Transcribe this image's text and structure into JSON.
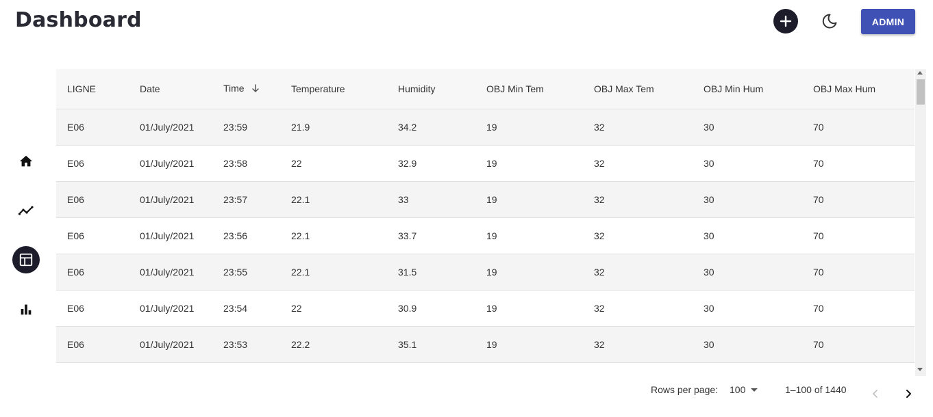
{
  "header": {
    "title": "Dashboard",
    "add_icon": "plus-icon",
    "theme_icon": "moon-icon",
    "admin_label": "ADMIN",
    "accent_color": "#3f51b5"
  },
  "sidebar": {
    "items": [
      {
        "name": "home",
        "icon": "home-icon",
        "active": false
      },
      {
        "name": "trend",
        "icon": "line-chart-icon",
        "active": false
      },
      {
        "name": "table",
        "icon": "table-icon",
        "active": true
      },
      {
        "name": "bar-chart",
        "icon": "bar-chart-icon",
        "active": false
      }
    ]
  },
  "table": {
    "columns": [
      "LIGNE",
      "Date",
      "Time",
      "Temperature",
      "Humidity",
      "OBJ Min Tem",
      "OBJ Max Tem",
      "OBJ Min Hum",
      "OBJ Max Hum"
    ],
    "sorted_column": "Time",
    "sort_direction": "desc",
    "rows": [
      [
        "E06",
        "01/July/2021",
        "23:59",
        "21.9",
        "34.2",
        "19",
        "32",
        "30",
        "70"
      ],
      [
        "E06",
        "01/July/2021",
        "23:58",
        "22",
        "32.9",
        "19",
        "32",
        "30",
        "70"
      ],
      [
        "E06",
        "01/July/2021",
        "23:57",
        "22.1",
        "33",
        "19",
        "32",
        "30",
        "70"
      ],
      [
        "E06",
        "01/July/2021",
        "23:56",
        "22.1",
        "33.7",
        "19",
        "32",
        "30",
        "70"
      ],
      [
        "E06",
        "01/July/2021",
        "23:55",
        "22.1",
        "31.5",
        "19",
        "32",
        "30",
        "70"
      ],
      [
        "E06",
        "01/July/2021",
        "23:54",
        "22",
        "30.9",
        "19",
        "32",
        "30",
        "70"
      ],
      [
        "E06",
        "01/July/2021",
        "23:53",
        "22.2",
        "35.1",
        "19",
        "32",
        "30",
        "70"
      ]
    ]
  },
  "pagination": {
    "rows_per_page_label": "Rows per page:",
    "rows_per_page_value": "100",
    "range": "1–100 of 1440",
    "prev_icon": "chevron-left-icon",
    "next_icon": "chevron-right-icon"
  }
}
